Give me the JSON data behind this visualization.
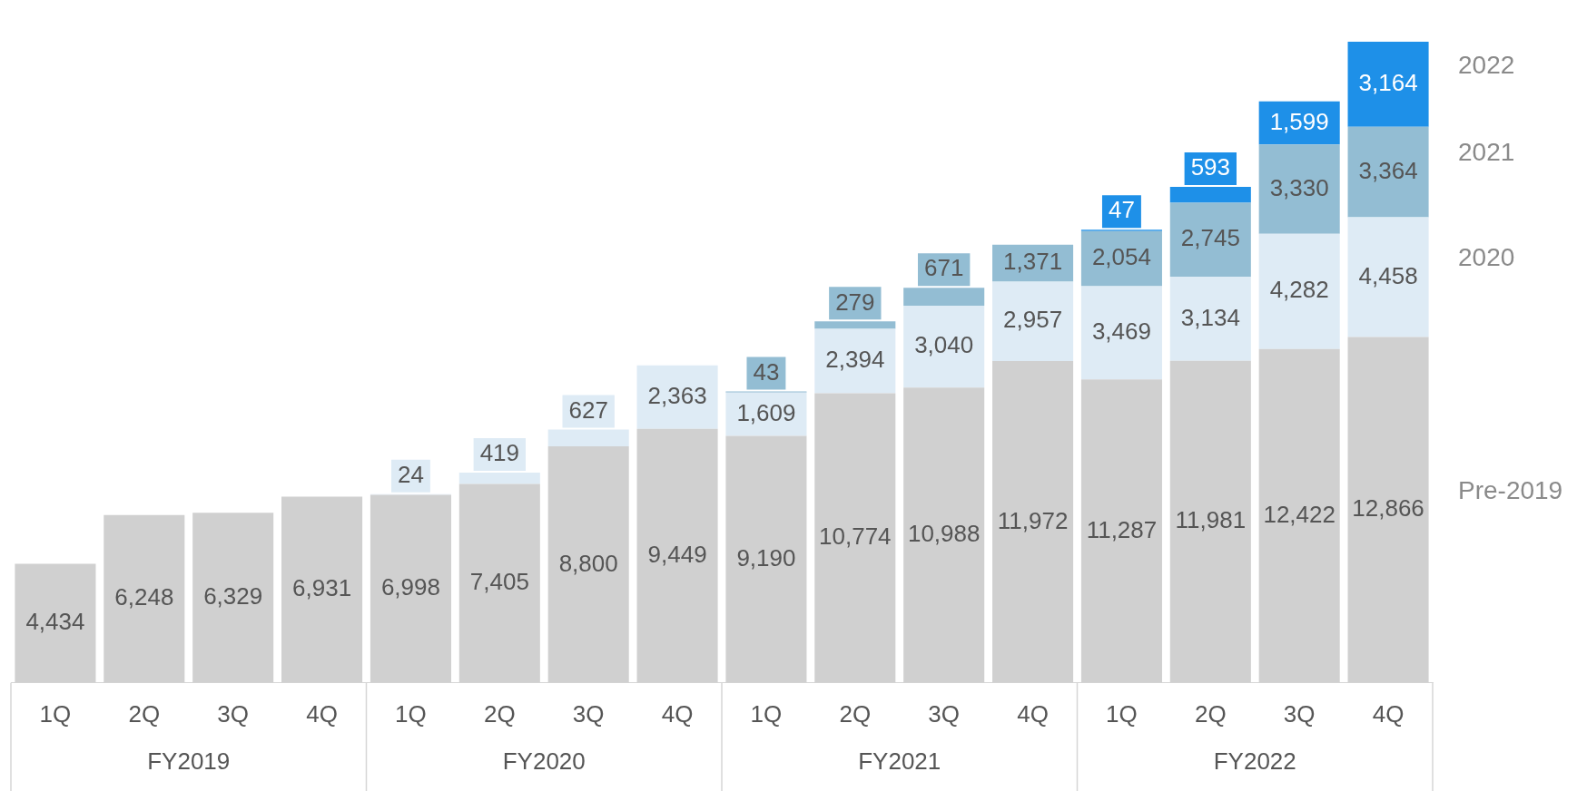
{
  "chart_data": {
    "type": "bar",
    "stacked": true,
    "legend": false,
    "tick_labels": "x",
    "categories": [
      "1Q",
      "2Q",
      "3Q",
      "4Q",
      "1Q",
      "2Q",
      "3Q",
      "4Q",
      "1Q",
      "2Q",
      "3Q",
      "4Q",
      "1Q",
      "2Q",
      "3Q",
      "4Q"
    ],
    "annotations": [
      "FY2019",
      "FY2020",
      "FY2021",
      "FY2022"
    ],
    "series": [
      {
        "name": "Pre-2019",
        "color": "#d0d0d0",
        "values": [
          4434,
          6248,
          6329,
          6931,
          6998,
          7405,
          8800,
          9449,
          9190,
          10774,
          10988,
          11972,
          11287,
          11981,
          12422,
          12866
        ],
        "value_labels": [
          "4,434",
          "6,248",
          "6,329",
          "6,931",
          "6,998",
          "7,405",
          "8,800",
          "9,449",
          "9,190",
          "10,774",
          "10,988",
          "11,972",
          "11,287",
          "11,981",
          "12,422",
          "12,866"
        ]
      },
      {
        "name": "2020",
        "color": "#deebf5",
        "values": [
          null,
          null,
          null,
          null,
          24,
          419,
          627,
          2363,
          1609,
          2394,
          3040,
          2957,
          3469,
          3134,
          4282,
          4458
        ],
        "value_labels": [
          null,
          null,
          null,
          null,
          "24",
          "419",
          "627",
          "2,363",
          "1,609",
          "2,394",
          "3,040",
          "2,957",
          "3,469",
          "3,134",
          "4,282",
          "4,458"
        ]
      },
      {
        "name": "2021",
        "color": "#93bdd3",
        "values": [
          null,
          null,
          null,
          null,
          null,
          null,
          null,
          null,
          43,
          279,
          671,
          1371,
          2054,
          2745,
          3330,
          3364
        ],
        "value_labels": [
          null,
          null,
          null,
          null,
          null,
          null,
          null,
          null,
          "43",
          "279",
          "671",
          "1,371",
          "2,054",
          "2,745",
          "3,330",
          "3,364"
        ]
      },
      {
        "name": "2022",
        "color": "#1e90e8",
        "values": [
          null,
          null,
          null,
          null,
          null,
          null,
          null,
          null,
          null,
          null,
          null,
          null,
          47,
          593,
          1599,
          3164
        ],
        "value_labels": [
          null,
          null,
          null,
          null,
          null,
          null,
          null,
          null,
          null,
          null,
          null,
          null,
          "47",
          "593",
          "1,599",
          "3,164"
        ]
      }
    ]
  }
}
